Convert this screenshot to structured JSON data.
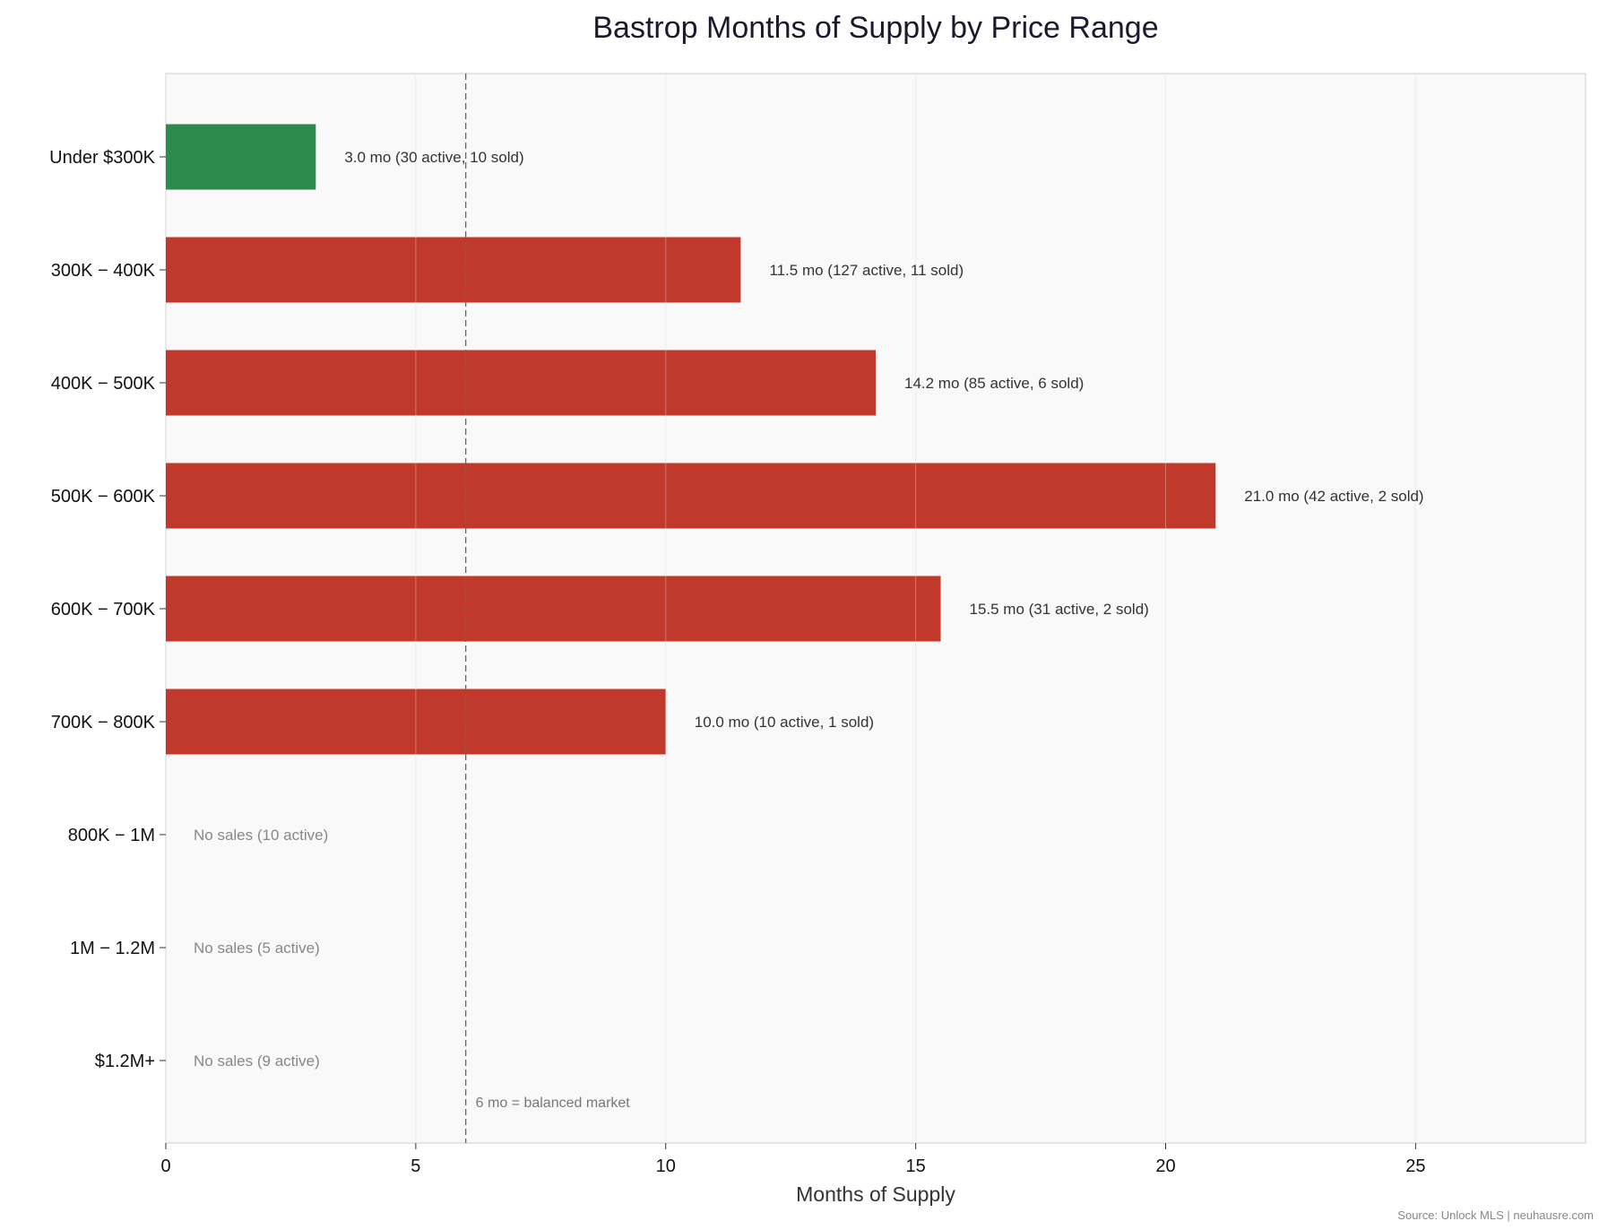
{
  "chart_data": {
    "type": "bar",
    "orientation": "horizontal",
    "title": "Bastrop Months of Supply by Price Range",
    "xlabel": "Months of Supply",
    "ylabel": "",
    "xlim": [
      0,
      28.4
    ],
    "xticks": [
      0,
      5,
      10,
      15,
      20,
      25
    ],
    "grid": true,
    "categories": [
      "Under $300K",
      "300K − 400K",
      "400K − 500K",
      "500K − 600K",
      "600K − 700K",
      "700K − 800K",
      "800K − 1M",
      "1M − 1.2M",
      "$1.2M+"
    ],
    "values": [
      3.0,
      11.5,
      14.2,
      21.0,
      15.5,
      10.0,
      null,
      null,
      null
    ],
    "bar_colors": [
      "#2e8b4e",
      "#c0392b",
      "#c0392b",
      "#c0392b",
      "#c0392b",
      "#c0392b",
      null,
      null,
      null
    ],
    "data_labels": [
      "3.0 mo  (30 active, 10 sold)",
      "11.5 mo  (127 active, 11 sold)",
      "14.2 mo  (85 active, 6 sold)",
      "21.0 mo  (42 active, 2 sold)",
      "15.5 mo  (31 active, 2 sold)",
      "10.0 mo  (10 active, 1 sold)",
      "No sales  (10 active)",
      "No sales  (5 active)",
      "No sales  (9 active)"
    ],
    "reference_line": {
      "x": 6,
      "label": "6 mo = balanced market",
      "style": "dashed"
    },
    "source": "Source: Unlock MLS | neuhausre.com",
    "colors": {
      "below_balanced": "#2e8b4e",
      "above_balanced": "#c0392b",
      "plot_background": "#f9f9f9"
    }
  }
}
